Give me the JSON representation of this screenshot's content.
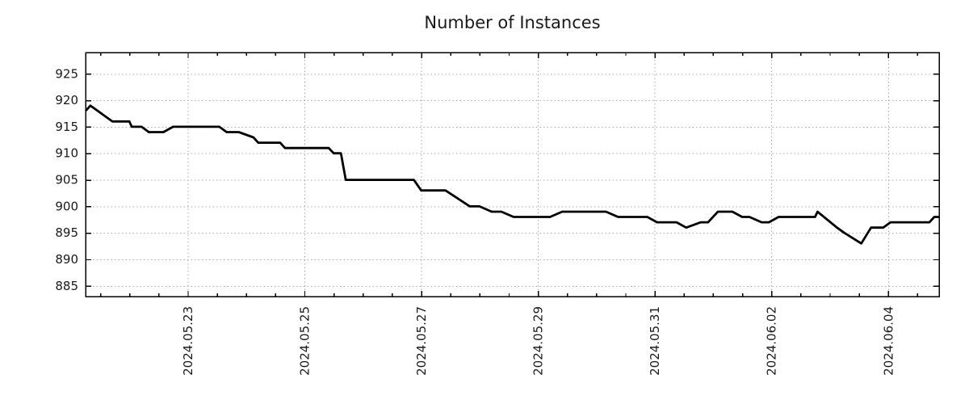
{
  "title": "Number of Instances",
  "chart_data": {
    "type": "line",
    "title": "Number of Instances",
    "xlabel": "",
    "ylabel": "",
    "legend": null,
    "grid": "dotted",
    "ylim": [
      883,
      929
    ],
    "yticks": [
      885,
      890,
      895,
      900,
      905,
      910,
      915,
      920,
      925
    ],
    "x_domain": [
      "2024-05-21T06:00",
      "2024-06-04T21:00"
    ],
    "xticks": [
      {
        "t": "2024-05-23T00:00",
        "label": "2024.05.23"
      },
      {
        "t": "2024-05-25T00:00",
        "label": "2024.05.25"
      },
      {
        "t": "2024-05-27T00:00",
        "label": "2024.05.27"
      },
      {
        "t": "2024-05-29T00:00",
        "label": "2024.05.29"
      },
      {
        "t": "2024-05-31T00:00",
        "label": "2024.05.31"
      },
      {
        "t": "2024-06-02T00:00",
        "label": "2024.06.02"
      },
      {
        "t": "2024-06-04T00:00",
        "label": "2024.06.04"
      }
    ],
    "x_minor_tick_hours": 12,
    "colors": {
      "line": "#000000",
      "grid": "#aaaaaa",
      "border": "#000000",
      "text": "#1a1a1a"
    },
    "series_name": "Number of Instances",
    "points": [
      [
        "2024-05-21T06:00",
        918
      ],
      [
        "2024-05-21T08:00",
        919
      ],
      [
        "2024-05-21T17:00",
        916
      ],
      [
        "2024-05-22T00:00",
        916
      ],
      [
        "2024-05-22T01:00",
        915
      ],
      [
        "2024-05-22T05:00",
        915
      ],
      [
        "2024-05-22T08:00",
        914
      ],
      [
        "2024-05-22T14:00",
        914
      ],
      [
        "2024-05-22T18:00",
        915
      ],
      [
        "2024-05-23T13:00",
        915
      ],
      [
        "2024-05-23T16:00",
        914
      ],
      [
        "2024-05-23T21:00",
        914
      ],
      [
        "2024-05-24T03:00",
        913
      ],
      [
        "2024-05-24T05:00",
        912
      ],
      [
        "2024-05-24T14:00",
        912
      ],
      [
        "2024-05-24T16:00",
        911
      ],
      [
        "2024-05-25T10:00",
        911
      ],
      [
        "2024-05-25T12:00",
        910
      ],
      [
        "2024-05-25T15:00",
        910
      ],
      [
        "2024-05-25T17:00",
        905
      ],
      [
        "2024-05-26T21:00",
        905
      ],
      [
        "2024-05-27T00:00",
        903
      ],
      [
        "2024-05-27T10:00",
        903
      ],
      [
        "2024-05-27T20:00",
        900
      ],
      [
        "2024-05-28T00:00",
        900
      ],
      [
        "2024-05-28T05:00",
        899
      ],
      [
        "2024-05-28T09:00",
        899
      ],
      [
        "2024-05-28T14:00",
        898
      ],
      [
        "2024-05-29T05:00",
        898
      ],
      [
        "2024-05-29T10:00",
        899
      ],
      [
        "2024-05-30T04:00",
        899
      ],
      [
        "2024-05-30T09:00",
        898
      ],
      [
        "2024-05-30T21:00",
        898
      ],
      [
        "2024-05-31T01:00",
        897
      ],
      [
        "2024-05-31T09:00",
        897
      ],
      [
        "2024-05-31T13:00",
        896
      ],
      [
        "2024-05-31T19:00",
        897
      ],
      [
        "2024-05-31T22:00",
        897
      ],
      [
        "2024-06-01T02:00",
        899
      ],
      [
        "2024-06-01T08:00",
        899
      ],
      [
        "2024-06-01T12:00",
        898
      ],
      [
        "2024-06-01T15:00",
        898
      ],
      [
        "2024-06-01T20:00",
        897
      ],
      [
        "2024-06-01T23:00",
        897
      ],
      [
        "2024-06-02T03:00",
        898
      ],
      [
        "2024-06-02T18:00",
        898
      ],
      [
        "2024-06-02T19:00",
        899
      ],
      [
        "2024-06-03T03:00",
        896
      ],
      [
        "2024-06-03T06:00",
        895
      ],
      [
        "2024-06-03T13:00",
        893
      ],
      [
        "2024-06-03T17:00",
        896
      ],
      [
        "2024-06-03T22:00",
        896
      ],
      [
        "2024-06-04T01:00",
        897
      ],
      [
        "2024-06-04T17:00",
        897
      ],
      [
        "2024-06-04T19:00",
        898
      ],
      [
        "2024-06-04T21:00",
        898
      ]
    ]
  }
}
